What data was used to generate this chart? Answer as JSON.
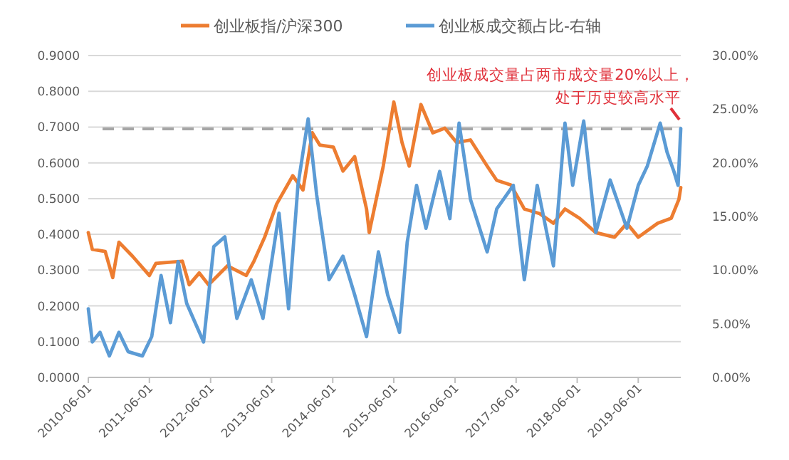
{
  "chart_data": {
    "type": "line",
    "legend": "top",
    "grid": "y",
    "line_style": "solid",
    "xlim": [
      "2010-06-01",
      "2020-02-10"
    ],
    "xticks": [
      "2010-06-01",
      "2011-06-01",
      "2012-06-01",
      "2013-06-01",
      "2014-06-01",
      "2015-06-01",
      "2016-06-01",
      "2017-06-01",
      "2018-06-01",
      "2019-06-01"
    ],
    "ylim": [
      0,
      0.9
    ],
    "yticks": [
      {
        "value": 0,
        "label": "0.0000"
      },
      {
        "value": 0.1,
        "label": "0.1000"
      },
      {
        "value": 0.2,
        "label": "0.2000"
      },
      {
        "value": 0.3,
        "label": "0.3000"
      },
      {
        "value": 0.4,
        "label": "0.4000"
      },
      {
        "value": 0.5,
        "label": "0.5000"
      },
      {
        "value": 0.6,
        "label": "0.6000"
      },
      {
        "value": 0.7,
        "label": "0.7000"
      },
      {
        "value": 0.8,
        "label": "0.8000"
      },
      {
        "value": 0.9,
        "label": "0.9000"
      }
    ],
    "y2lim": [
      0,
      30
    ],
    "y2ticks": [
      {
        "value": 0,
        "label": "0.00%"
      },
      {
        "value": 5,
        "label": "5.00%"
      },
      {
        "value": 10,
        "label": "10.00%"
      },
      {
        "value": 15,
        "label": "15.00%"
      },
      {
        "value": 20,
        "label": "20.00%"
      },
      {
        "value": 25,
        "label": "25.00%"
      },
      {
        "value": 30,
        "label": "30.00%"
      }
    ],
    "ref_lines": [
      {
        "axis": "y",
        "value": 0.695,
        "color": "#a5a5a5",
        "line_style": "dashed"
      }
    ],
    "annotations": [
      "创业板成交量占两市成交量20%以上，",
      "处于历史较高水平"
    ],
    "series": [
      {
        "name": "创业板指/沪深300",
        "color": "#ed7d31",
        "x": [
          "2010-06-01",
          "2010-06-25",
          "2010-09-10",
          "2010-10-25",
          "2010-12-01",
          "2011-02-20",
          "2011-06-01",
          "2011-07-10",
          "2011-12-15",
          "2012-01-25",
          "2012-03-25",
          "2012-05-20",
          "2012-09-10",
          "2012-12-31",
          "2013-02-15",
          "2013-04-20",
          "2013-07-01",
          "2013-10-05",
          "2013-12-05",
          "2014-01-30",
          "2014-03-15",
          "2014-06-05",
          "2014-08-01",
          "2014-10-10",
          "2014-12-20",
          "2015-01-05",
          "2015-03-30",
          "2015-06-01",
          "2015-07-20",
          "2015-09-01",
          "2015-11-10",
          "2016-01-20",
          "2016-04-01",
          "2016-06-10",
          "2016-09-01",
          "2016-12-10",
          "2017-02-05",
          "2017-05-01",
          "2017-07-20",
          "2017-10-20",
          "2018-01-10",
          "2018-03-20",
          "2018-06-15",
          "2018-09-20",
          "2019-01-10",
          "2019-03-25",
          "2019-06-01",
          "2019-09-25",
          "2019-12-15",
          "2020-01-30",
          "2020-02-10"
        ],
        "values": [
          0.405,
          0.358,
          0.352,
          0.279,
          0.378,
          0.339,
          0.285,
          0.319,
          0.325,
          0.259,
          0.292,
          0.259,
          0.312,
          0.285,
          0.325,
          0.392,
          0.485,
          0.564,
          0.524,
          0.684,
          0.65,
          0.644,
          0.577,
          0.617,
          0.471,
          0.405,
          0.591,
          0.77,
          0.657,
          0.591,
          0.763,
          0.684,
          0.697,
          0.657,
          0.664,
          0.591,
          0.551,
          0.538,
          0.471,
          0.458,
          0.431,
          0.471,
          0.445,
          0.405,
          0.392,
          0.431,
          0.392,
          0.431,
          0.445,
          0.498,
          0.531
        ]
      },
      {
        "name": "创业板成交额占比-右轴",
        "color": "#5b9bd5",
        "axis": "y2",
        "x": [
          "2010-06-01",
          "2010-06-25",
          "2010-08-10",
          "2010-10-05",
          "2010-12-01",
          "2011-01-25",
          "2011-04-20",
          "2011-06-15",
          "2011-08-10",
          "2011-10-05",
          "2011-11-20",
          "2012-01-10",
          "2012-04-20",
          "2012-06-20",
          "2012-08-25",
          "2012-11-05",
          "2013-01-30",
          "2013-04-10",
          "2013-07-15",
          "2013-09-10",
          "2013-11-05",
          "2014-01-05",
          "2014-02-25",
          "2014-05-10",
          "2014-08-01",
          "2014-10-10",
          "2014-12-20",
          "2015-03-01",
          "2015-04-25",
          "2015-07-05",
          "2015-08-20",
          "2015-10-15",
          "2015-12-10",
          "2016-03-01",
          "2016-05-01",
          "2016-06-25",
          "2016-09-01",
          "2016-12-10",
          "2017-02-05",
          "2017-05-15",
          "2017-07-20",
          "2017-10-05",
          "2018-01-10",
          "2018-03-20",
          "2018-05-05",
          "2018-07-10",
          "2018-09-20",
          "2018-12-15",
          "2019-03-25",
          "2019-06-01",
          "2019-07-25",
          "2019-10-10",
          "2019-11-20",
          "2019-12-31",
          "2020-01-25",
          "2020-02-10"
        ],
        "values": [
          6.4,
          3.3,
          4.2,
          2.0,
          4.2,
          2.4,
          2.0,
          3.8,
          9.5,
          5.1,
          10.8,
          6.9,
          3.3,
          12.2,
          13.1,
          5.5,
          9.1,
          5.5,
          15.3,
          6.4,
          17.9,
          24.1,
          17.0,
          9.1,
          11.3,
          7.7,
          3.8,
          11.7,
          7.7,
          4.2,
          12.6,
          17.9,
          13.9,
          19.2,
          14.8,
          23.7,
          16.6,
          11.7,
          15.7,
          17.9,
          9.1,
          17.9,
          10.4,
          23.7,
          17.9,
          23.9,
          13.5,
          18.4,
          13.9,
          17.9,
          19.7,
          23.7,
          21.0,
          19.2,
          17.9,
          23.2
        ]
      }
    ]
  }
}
